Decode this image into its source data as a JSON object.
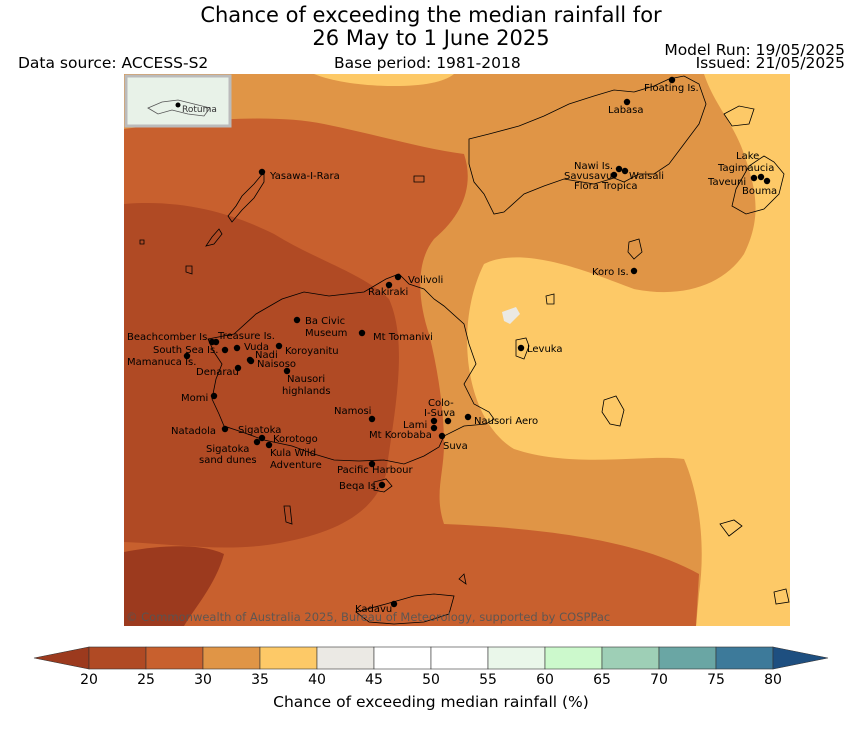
{
  "header": {
    "title_line1": "Chance of exceeding the median rainfall for",
    "title_line2": "26 May to 1 June 2025",
    "data_source": "Data source: ACCESS-S2",
    "base_period": "Base period: 1981-2018",
    "model_run": "Model Run: 19/05/2025",
    "issued": "Issued: 21/05/2025"
  },
  "map": {
    "copyright": "© Commonwealth of Australia 2025, Bureau of Meteorology, supported by COSPPac",
    "inset_label": "Rotuma",
    "place_labels": [
      "Floating Is.",
      "Labasa",
      "Yasawa-I-Rara",
      "Nawi Is.",
      "Savusavu",
      "Waisali",
      "Flora Tropica",
      "Lake",
      "Tagimaucia",
      "Taveuni",
      "Bouma",
      "Koro Is.",
      "Volivoli",
      "Rakiraki",
      "Ba Civic",
      "Museum",
      "Mt Tomanivi",
      "Beachcomber Is.",
      "Treasure Is.",
      "South Sea Is.",
      "Vuda",
      "Koroyanitu",
      "Nadi",
      "Naisoso",
      "Mamanuca Is.",
      "Denarau",
      "Nausori",
      "highlands",
      "Levuka",
      "Momi",
      "Colo-",
      "I-Suva",
      "Namosi",
      "Lami",
      "Nausori Aero",
      "Mt Korobaba",
      "Suva",
      "Natadola",
      "Sigatoka",
      "Korotogo",
      "Sigatoka",
      "sand dunes",
      "Kula Wild",
      "Adventure",
      "Pacific Harbour",
      "Beqa Is.",
      "Kadavu"
    ],
    "colors": {
      "c20": "#9c3a1e",
      "c25": "#b04a24",
      "c30": "#c8602e",
      "c35": "#e09546",
      "c40": "#fdc967",
      "c45": "#ebe9e4"
    }
  },
  "colorbar": {
    "title": "Chance of exceeding median rainfall (%)",
    "ticks": [
      "20",
      "25",
      "30",
      "35",
      "40",
      "45",
      "50",
      "55",
      "60",
      "65",
      "70",
      "75",
      "80"
    ],
    "colors": [
      "#b04a24",
      "#c8602e",
      "#e09546",
      "#fdc967",
      "#ebe9e4",
      "#ffffff",
      "#ffffff",
      "#eaf7ea",
      "#ccf9cc",
      "#9ecfb6",
      "#6aa6a4",
      "#3d7a9a"
    ],
    "under_color": "#9c3a1e",
    "over_color": "#1e4f80"
  }
}
